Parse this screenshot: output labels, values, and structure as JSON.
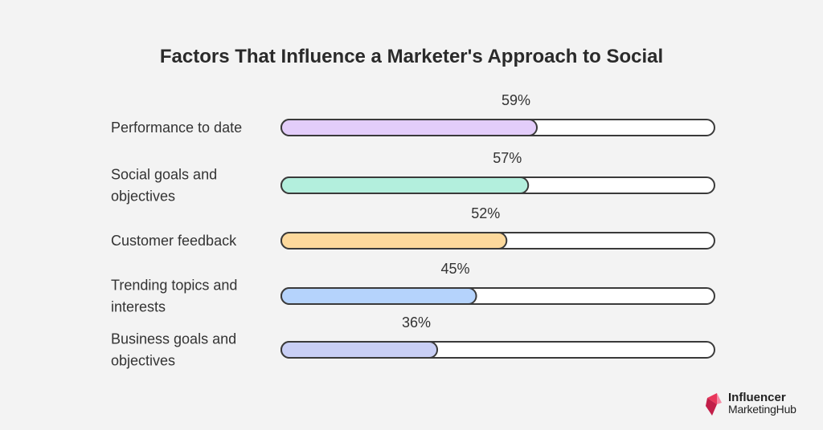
{
  "chart_data": {
    "type": "bar",
    "orientation": "horizontal",
    "title": "Factors That Influence a Marketer's Approach to Social",
    "xlim": [
      0,
      100
    ],
    "grid": false,
    "legend": "none",
    "categories": [
      [
        "Performance to date"
      ],
      [
        "Social goals and",
        "objectives"
      ],
      [
        "Customer feedback"
      ],
      [
        "Trending topics and",
        "interests"
      ],
      [
        "Business goals and",
        "objectives"
      ]
    ],
    "values": [
      59,
      57,
      52,
      45,
      36
    ],
    "value_labels": [
      "59%",
      "57%",
      "52%",
      "45%",
      "36%"
    ],
    "colors": [
      "#e3cdfa",
      "#b3efdd",
      "#fdd99c",
      "#b5d3fc",
      "#c9cff5"
    ],
    "track_color": "#ffffff",
    "outline_color": "#3a3a3a"
  },
  "brand": {
    "line1": "Influencer",
    "line2": "MarketingHub",
    "logo_colors": [
      "#e8365a",
      "#c21f49",
      "#f48aa5"
    ]
  }
}
